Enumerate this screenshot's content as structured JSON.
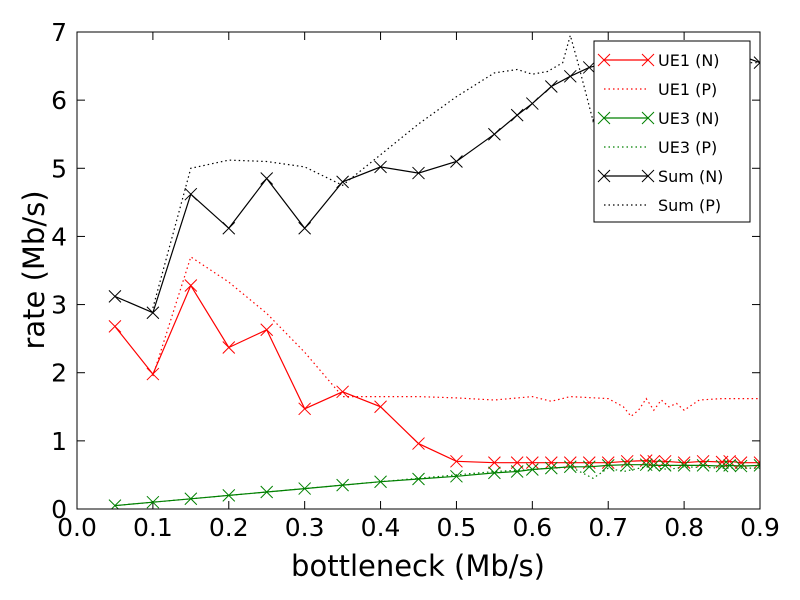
{
  "chart_data": {
    "type": "line",
    "title": "",
    "xlabel": "bottleneck (Mb/s)",
    "ylabel": "rate (Mb/s)",
    "xlim": [
      0.0,
      0.9
    ],
    "ylim": [
      0,
      7
    ],
    "xticks": [
      "0.0",
      "0.1",
      "0.2",
      "0.3",
      "0.4",
      "0.5",
      "0.6",
      "0.7",
      "0.8",
      "0.9"
    ],
    "yticks": [
      "0",
      "1",
      "2",
      "3",
      "4",
      "5",
      "6",
      "7"
    ],
    "grid": false,
    "legend_position": "top-right",
    "series": [
      {
        "name": "UE1 (N)",
        "color": "#ff0000",
        "style": "solid",
        "marker": "x",
        "x": [
          0.05,
          0.1,
          0.15,
          0.2,
          0.25,
          0.3,
          0.35,
          0.4,
          0.45,
          0.5,
          0.55,
          0.58,
          0.6,
          0.625,
          0.65,
          0.675,
          0.7,
          0.725,
          0.75,
          0.76,
          0.775,
          0.8,
          0.825,
          0.85,
          0.86,
          0.875,
          0.9
        ],
        "y": [
          2.68,
          1.98,
          3.28,
          2.37,
          2.63,
          1.47,
          1.72,
          1.5,
          0.96,
          0.7,
          0.68,
          0.68,
          0.68,
          0.68,
          0.68,
          0.68,
          0.68,
          0.7,
          0.71,
          0.7,
          0.7,
          0.68,
          0.7,
          0.69,
          0.7,
          0.68,
          0.68
        ]
      },
      {
        "name": "UE1 (P)",
        "color": "#ff0000",
        "style": "dotted",
        "marker": "none",
        "x": [
          0.1,
          0.15,
          0.2,
          0.25,
          0.3,
          0.35,
          0.4,
          0.45,
          0.5,
          0.55,
          0.6,
          0.625,
          0.65,
          0.7,
          0.72,
          0.73,
          0.74,
          0.75,
          0.76,
          0.77,
          0.78,
          0.79,
          0.8,
          0.82,
          0.85,
          0.9
        ],
        "y": [
          1.95,
          3.7,
          3.33,
          2.87,
          2.3,
          1.65,
          1.65,
          1.65,
          1.63,
          1.6,
          1.65,
          1.58,
          1.65,
          1.62,
          1.5,
          1.36,
          1.45,
          1.62,
          1.45,
          1.6,
          1.5,
          1.55,
          1.45,
          1.6,
          1.62,
          1.62
        ]
      },
      {
        "name": "UE3 (N)",
        "color": "#008000",
        "style": "solid",
        "marker": "x",
        "x": [
          0.05,
          0.1,
          0.15,
          0.2,
          0.25,
          0.3,
          0.35,
          0.4,
          0.45,
          0.5,
          0.55,
          0.58,
          0.6,
          0.625,
          0.65,
          0.675,
          0.7,
          0.725,
          0.75,
          0.76,
          0.775,
          0.8,
          0.825,
          0.85,
          0.86,
          0.875,
          0.9
        ],
        "y": [
          0.05,
          0.1,
          0.15,
          0.2,
          0.25,
          0.3,
          0.35,
          0.4,
          0.44,
          0.48,
          0.53,
          0.55,
          0.58,
          0.6,
          0.62,
          0.62,
          0.64,
          0.65,
          0.65,
          0.64,
          0.64,
          0.64,
          0.64,
          0.63,
          0.64,
          0.63,
          0.64
        ]
      },
      {
        "name": "UE3 (P)",
        "color": "#008000",
        "style": "dotted",
        "marker": "none",
        "x": [
          0.05,
          0.15,
          0.25,
          0.35,
          0.45,
          0.55,
          0.6,
          0.65,
          0.68,
          0.7,
          0.72,
          0.75,
          0.78,
          0.8,
          0.85,
          0.9
        ],
        "y": [
          0.05,
          0.15,
          0.25,
          0.35,
          0.45,
          0.55,
          0.58,
          0.62,
          0.45,
          0.6,
          0.55,
          0.62,
          0.58,
          0.62,
          0.6,
          0.6
        ]
      },
      {
        "name": "Sum (N)",
        "color": "#000000",
        "style": "solid",
        "marker": "x",
        "x": [
          0.05,
          0.1,
          0.15,
          0.2,
          0.25,
          0.3,
          0.35,
          0.4,
          0.45,
          0.5,
          0.55,
          0.58,
          0.6,
          0.625,
          0.65,
          0.675,
          0.7,
          0.725,
          0.75,
          0.76,
          0.775,
          0.8,
          0.825,
          0.85,
          0.86,
          0.875,
          0.9
        ],
        "y": [
          3.12,
          2.88,
          4.62,
          4.12,
          4.85,
          4.12,
          4.8,
          5.02,
          4.93,
          5.1,
          5.5,
          5.78,
          5.95,
          6.2,
          6.35,
          6.48,
          6.55,
          6.6,
          6.62,
          6.62,
          6.63,
          6.62,
          6.62,
          6.62,
          6.63,
          6.65,
          6.55
        ]
      },
      {
        "name": "Sum (P)",
        "color": "#000000",
        "style": "dotted",
        "marker": "none",
        "x": [
          0.1,
          0.15,
          0.2,
          0.25,
          0.3,
          0.35,
          0.4,
          0.45,
          0.5,
          0.55,
          0.58,
          0.6,
          0.62,
          0.64,
          0.65,
          0.66,
          0.68,
          0.7,
          0.75,
          0.8,
          0.85,
          0.9
        ],
        "y": [
          2.95,
          5.0,
          5.12,
          5.1,
          5.02,
          4.75,
          5.2,
          5.65,
          6.05,
          6.4,
          6.45,
          6.38,
          6.42,
          6.55,
          6.95,
          6.55,
          5.7,
          6.45,
          6.6,
          6.5,
          6.55,
          6.55
        ]
      }
    ]
  }
}
